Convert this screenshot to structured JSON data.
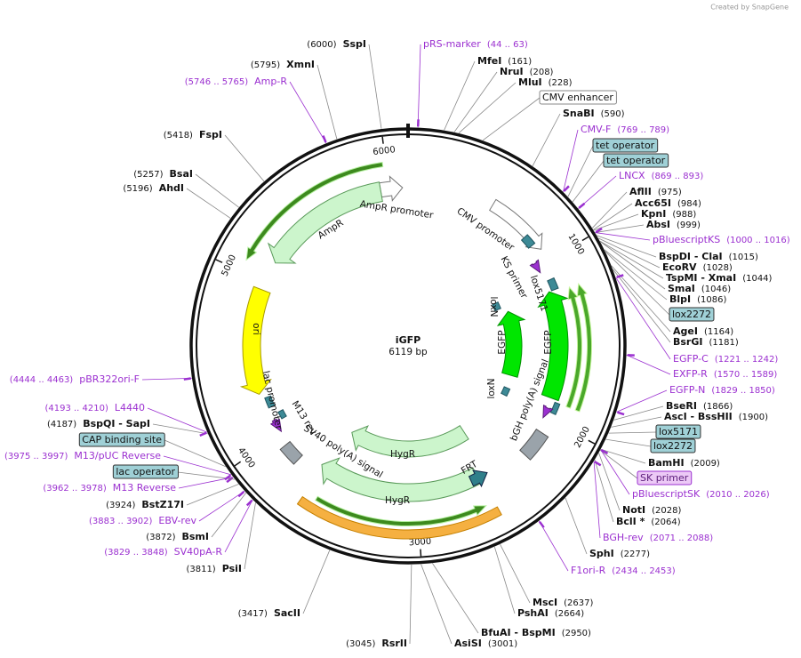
{
  "credit": "Created by SnapGene",
  "map": {
    "name": "iGFP",
    "length": "6119 bp",
    "ticks": [
      1000,
      2000,
      3000,
      4000,
      5000,
      6000
    ]
  },
  "features": [
    "CMV promoter",
    "KS primer",
    "lox5171",
    "loxN",
    "EGFP",
    "EGFP",
    "loxN",
    "bGH poly(A) signal",
    "FRT",
    "HygR",
    "HygR",
    "SV40 poly(A) signal",
    "M13 rev",
    "lac promoter",
    "ori",
    "AmpR",
    "AmpR promoter"
  ],
  "labels": [
    {
      "name": "pRS-marker",
      "detail": "(44 .. 63)",
      "kind": "primer"
    },
    {
      "name": "MfeI",
      "detail": "(161)",
      "kind": "enzyme"
    },
    {
      "name": "NruI",
      "detail": "(208)",
      "kind": "enzyme"
    },
    {
      "name": "MluI",
      "detail": "(228)",
      "kind": "enzyme"
    },
    {
      "name": "CMV enhancer",
      "kind": "box",
      "style": "white"
    },
    {
      "name": "SnaBI",
      "detail": "(590)",
      "kind": "enzyme"
    },
    {
      "name": "CMV-F",
      "detail": "(769 .. 789)",
      "kind": "primer"
    },
    {
      "name": "tet operator",
      "kind": "box",
      "style": "teal"
    },
    {
      "name": "tet operator",
      "kind": "box",
      "style": "teal"
    },
    {
      "name": "LNCX",
      "detail": "(869 .. 893)",
      "kind": "primer"
    },
    {
      "name": "AflII",
      "detail": "(975)",
      "kind": "enzyme"
    },
    {
      "name": "Acc65I",
      "detail": "(984)",
      "kind": "enzyme"
    },
    {
      "name": "KpnI",
      "detail": "(988)",
      "kind": "enzyme"
    },
    {
      "name": "AbsI",
      "detail": "(999)",
      "kind": "enzyme"
    },
    {
      "name": "pBluescriptKS",
      "detail": "(1000 .. 1016)",
      "kind": "primer"
    },
    {
      "name": "BspDI - ClaI",
      "detail": "(1015)",
      "kind": "enzyme"
    },
    {
      "name": "EcoRV",
      "detail": "(1028)",
      "kind": "enzyme"
    },
    {
      "name": "TspMI - XmaI",
      "detail": "(1044)",
      "kind": "enzyme"
    },
    {
      "name": "SmaI",
      "detail": "(1046)",
      "kind": "enzyme"
    },
    {
      "name": "BlpI",
      "detail": "(1086)",
      "kind": "enzyme"
    },
    {
      "name": "lox2272",
      "kind": "box",
      "style": "teal"
    },
    {
      "name": "AgeI",
      "detail": "(1164)",
      "kind": "enzyme"
    },
    {
      "name": "BsrGI",
      "detail": "(1181)",
      "kind": "enzyme"
    },
    {
      "name": "EGFP-C",
      "detail": "(1221 .. 1242)",
      "kind": "primer"
    },
    {
      "name": "EXFP-R",
      "detail": "(1570 .. 1589)",
      "kind": "primer"
    },
    {
      "name": "EGFP-N",
      "detail": "(1829 .. 1850)",
      "kind": "primer"
    },
    {
      "name": "BseRI",
      "detail": "(1866)",
      "kind": "enzyme"
    },
    {
      "name": "AscI - BssHII",
      "detail": "(1900)",
      "kind": "enzyme"
    },
    {
      "name": "lox5171",
      "kind": "box",
      "style": "teal"
    },
    {
      "name": "lox2272",
      "kind": "box",
      "style": "teal"
    },
    {
      "name": "BamHI",
      "detail": "(2009)",
      "kind": "enzyme"
    },
    {
      "name": "SK primer",
      "kind": "box",
      "style": "purple"
    },
    {
      "name": "pBluescriptSK",
      "detail": "(2010 .. 2026)",
      "kind": "primer"
    },
    {
      "name": "NotI",
      "detail": "(2028)",
      "kind": "enzyme"
    },
    {
      "name": "BclI *",
      "detail": "(2064)",
      "kind": "enzyme"
    },
    {
      "name": "BGH-rev",
      "detail": "(2071 .. 2088)",
      "kind": "primer"
    },
    {
      "name": "SphI",
      "detail": "(2277)",
      "kind": "enzyme"
    },
    {
      "name": "F1ori-R",
      "detail": "(2434 .. 2453)",
      "kind": "primer"
    },
    {
      "name": "MscI",
      "detail": "(2637)",
      "kind": "enzyme"
    },
    {
      "name": "PshAI",
      "detail": "(2664)",
      "kind": "enzyme"
    },
    {
      "name": "BfuAI - BspMI",
      "detail": "(2950)",
      "kind": "enzyme"
    },
    {
      "name": "AsiSI",
      "detail": "(3001)",
      "kind": "enzyme"
    },
    {
      "name": "RsrII",
      "detail": "(3045)",
      "kind": "enzyme"
    },
    {
      "name": "SacII",
      "detail": "(3417)",
      "kind": "enzyme"
    },
    {
      "name": "PsiI",
      "detail": "(3811)",
      "kind": "enzyme"
    },
    {
      "name": "SV40pA-R",
      "detail": "(3829 .. 3848)",
      "kind": "primer"
    },
    {
      "name": "BsmI",
      "detail": "(3872)",
      "kind": "enzyme"
    },
    {
      "name": "EBV-rev",
      "detail": "(3883 .. 3902)",
      "kind": "primer"
    },
    {
      "name": "BstZ17I",
      "detail": "(3924)",
      "kind": "enzyme"
    },
    {
      "name": "M13 Reverse",
      "detail": "(3962 .. 3978)",
      "kind": "primer"
    },
    {
      "name": "lac operator",
      "kind": "box",
      "style": "teal"
    },
    {
      "name": "M13/pUC Reverse",
      "detail": "(3975 .. 3997)",
      "kind": "primer"
    },
    {
      "name": "CAP binding site",
      "kind": "box",
      "style": "teal"
    },
    {
      "name": "BspQI - SapI",
      "detail": "(4187)",
      "kind": "enzyme"
    },
    {
      "name": "L4440",
      "detail": "(4193 .. 4210)",
      "kind": "primer"
    },
    {
      "name": "pBR322ori-F",
      "detail": "(4444 .. 4463)",
      "kind": "primer"
    },
    {
      "name": "AhdI",
      "detail": "(5196)",
      "kind": "enzyme"
    },
    {
      "name": "BsaI",
      "detail": "(5257)",
      "kind": "enzyme"
    },
    {
      "name": "FspI",
      "detail": "(5418)",
      "kind": "enzyme"
    },
    {
      "name": "Amp-R",
      "detail": "(5746 .. 5765)",
      "kind": "primer"
    },
    {
      "name": "XmnI",
      "detail": "(5795)",
      "kind": "enzyme"
    },
    {
      "name": "SspI",
      "detail": "(6000)",
      "kind": "enzyme"
    }
  ]
}
